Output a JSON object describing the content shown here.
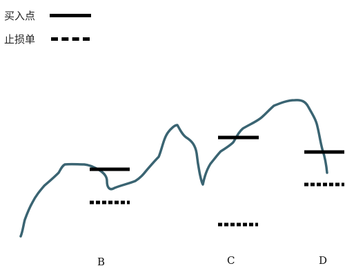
{
  "legend": {
    "entry_line": "买入点",
    "stop_loss_line": "止损单"
  },
  "points": {
    "b": "B",
    "c": "C",
    "d": "D"
  },
  "colors": {
    "price_curve": "#3a6472",
    "markers": "#000000"
  }
}
